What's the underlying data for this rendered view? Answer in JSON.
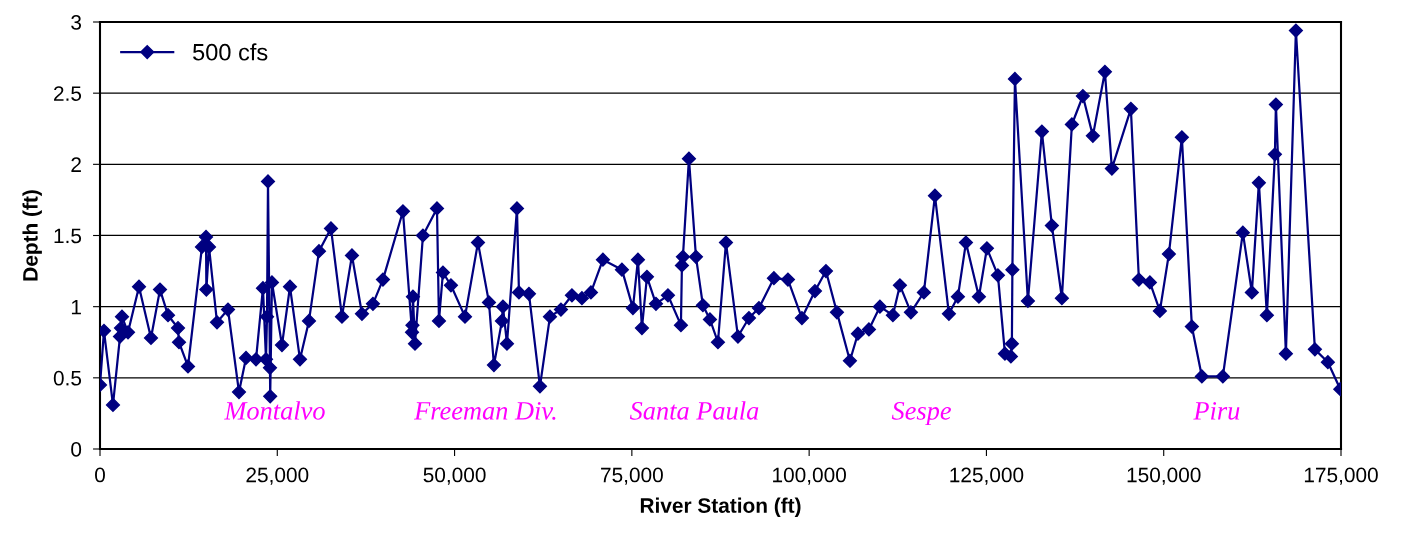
{
  "chart_data": {
    "type": "line",
    "xlabel": "River Station (ft)",
    "ylabel": "Depth (ft)",
    "xlim": [
      0,
      175000
    ],
    "xticks": [
      {
        "value": 0,
        "label": "0"
      },
      {
        "value": 25000,
        "label": "25,000"
      },
      {
        "value": 50000,
        "label": "50,000"
      },
      {
        "value": 75000,
        "label": "75,000"
      },
      {
        "value": 100000,
        "label": "100,000"
      },
      {
        "value": 125000,
        "label": "125,000"
      },
      {
        "value": 150000,
        "label": "150,000"
      },
      {
        "value": 175000,
        "label": "175,000"
      }
    ],
    "ylim": [
      0,
      3
    ],
    "yticks": [
      0,
      0.5,
      1,
      1.5,
      2,
      2.5,
      3
    ],
    "grid": "y",
    "legend": "top left",
    "marker": "diamond",
    "line_style": "solid",
    "x": [
      0,
      560,
      1830,
      2820,
      2960,
      3100,
      3950,
      5500,
      7190,
      8460,
      9590,
      11000,
      11140,
      12410,
      14380,
      14950,
      15000,
      15370,
      16500,
      18050,
      19600,
      20590,
      22000,
      22980,
      23410,
      23550,
      23690,
      23970,
      24000,
      24250,
      25660,
      26790,
      28200,
      29470,
      30880,
      32570,
      34120,
      35530,
      36940,
      38490,
      39900,
      42720,
      44000,
      44060,
      44130,
      44420,
      45540,
      47520,
      47800,
      48360,
      49490,
      51470,
      53300,
      54850,
      55550,
      56680,
      56820,
      57390,
      58800,
      59080,
      60490,
      62040,
      63450,
      65000,
      66550,
      67960,
      69230,
      70920,
      73600,
      75150,
      75860,
      76420,
      77130,
      78400,
      80090,
      81920,
      82060,
      82200,
      83050,
      84040,
      85020,
      86010,
      87140,
      88270,
      89960,
      91510,
      92920,
      95030,
      97010,
      98980,
      100820,
      102370,
      103920,
      105750,
      106880,
      108430,
      109980,
      111810,
      112800,
      114350,
      116180,
      117740,
      119710,
      120980,
      122110,
      123940,
      125070,
      126620,
      127610,
      128450,
      128590,
      128660,
      129020,
      130850,
      132820,
      134230,
      135640,
      137050,
      138600,
      140010,
      141710,
      142690,
      145370,
      146500,
      148050,
      149460,
      150730,
      152560,
      153970,
      155380,
      158340,
      161160,
      162430,
      163420,
      164550,
      165680,
      165820,
      167230,
      168640,
      171320,
      173150,
      174900
    ],
    "series": [
      {
        "name": "500 cfs",
        "color": "#000080",
        "values": [
          0.45,
          0.83,
          0.31,
          0.79,
          0.85,
          0.93,
          0.82,
          1.14,
          0.78,
          1.12,
          0.94,
          0.85,
          0.75,
          0.58,
          1.42,
          1.49,
          1.12,
          1.42,
          0.89,
          0.98,
          0.4,
          0.64,
          0.63,
          1.13,
          0.63,
          0.93,
          1.88,
          0.57,
          0.37,
          1.17,
          0.73,
          1.14,
          0.63,
          0.9,
          1.39,
          1.55,
          0.93,
          1.36,
          0.95,
          1.02,
          1.19,
          1.67,
          0.82,
          0.87,
          1.07,
          0.74,
          1.5,
          1.69,
          0.9,
          1.24,
          1.15,
          0.93,
          1.45,
          1.03,
          0.59,
          0.9,
          1.0,
          0.74,
          1.69,
          1.1,
          1.09,
          0.44,
          0.93,
          0.98,
          1.08,
          1.06,
          1.1,
          1.33,
          1.26,
          0.99,
          1.33,
          0.85,
          1.21,
          1.02,
          1.08,
          0.87,
          1.29,
          1.35,
          2.04,
          1.35,
          1.01,
          0.91,
          0.75,
          1.45,
          0.79,
          0.92,
          0.99,
          1.2,
          1.19,
          0.92,
          1.11,
          1.25,
          0.96,
          0.62,
          0.81,
          0.84,
          1.0,
          0.94,
          1.15,
          0.96,
          1.1,
          1.78,
          0.95,
          1.07,
          1.45,
          1.07,
          1.41,
          1.22,
          0.67,
          0.65,
          0.74,
          1.26,
          2.6,
          1.04,
          2.23,
          1.57,
          1.06,
          2.28,
          2.48,
          2.2,
          2.65,
          1.97,
          2.39,
          1.19,
          1.17,
          0.97,
          1.37,
          2.19,
          0.86,
          0.51,
          0.51,
          1.52,
          1.1,
          1.87,
          0.94,
          2.07,
          2.42,
          0.67,
          2.94,
          0.7,
          0.61,
          0.42
        ]
      }
    ],
    "annotations": [
      "Montalvo",
      "Freeman Div.",
      "Santa Paula",
      "Sespe",
      "Piru"
    ]
  }
}
